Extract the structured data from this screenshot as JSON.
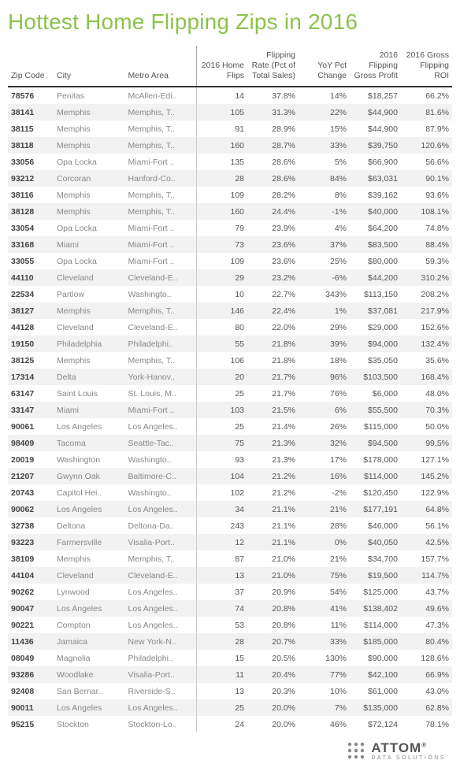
{
  "title": "Hottest Home Flipping Zips in 2016",
  "columns": [
    {
      "key": "zip",
      "label": "Zip Code",
      "class": "hdr-zip"
    },
    {
      "key": "city",
      "label": "City",
      "class": "hdr-city"
    },
    {
      "key": "metro",
      "label": "Metro Area",
      "class": "hdr-metro"
    },
    {
      "key": "flips",
      "label": "2016 Home Flips",
      "class": "hdr-num"
    },
    {
      "key": "rate",
      "label": "Flipping Rate (Pct of Total Sales)",
      "class": "hdr-num"
    },
    {
      "key": "yoy",
      "label": "YoY Pct Change",
      "class": "hdr-num"
    },
    {
      "key": "profit",
      "label": "2016 Flipping Gross Profit",
      "class": "hdr-num"
    },
    {
      "key": "roi",
      "label": "2016 Gross Flipping ROI",
      "class": "hdr-num"
    }
  ],
  "rows": [
    {
      "zip": "78576",
      "city": "Penitas",
      "metro": "McAllen-Edi..",
      "flips": "14",
      "rate": "37.8%",
      "yoy": "14%",
      "profit": "$18,257",
      "roi": "66.2%"
    },
    {
      "zip": "38141",
      "city": "Memphis",
      "metro": "Memphis, T..",
      "flips": "105",
      "rate": "31.3%",
      "yoy": "22%",
      "profit": "$44,900",
      "roi": "81.6%"
    },
    {
      "zip": "38115",
      "city": "Memphis",
      "metro": "Memphis, T..",
      "flips": "91",
      "rate": "28.9%",
      "yoy": "15%",
      "profit": "$44,900",
      "roi": "87.9%"
    },
    {
      "zip": "38118",
      "city": "Memphis",
      "metro": "Memphis, T..",
      "flips": "160",
      "rate": "28.7%",
      "yoy": "33%",
      "profit": "$39,750",
      "roi": "120.6%"
    },
    {
      "zip": "33056",
      "city": "Opa Locka",
      "metro": "Miami-Fort ..",
      "flips": "135",
      "rate": "28.6%",
      "yoy": "5%",
      "profit": "$66,900",
      "roi": "56.6%"
    },
    {
      "zip": "93212",
      "city": "Corcoran",
      "metro": "Hanford-Co..",
      "flips": "28",
      "rate": "28.6%",
      "yoy": "84%",
      "profit": "$63,031",
      "roi": "90.1%"
    },
    {
      "zip": "38116",
      "city": "Memphis",
      "metro": "Memphis, T..",
      "flips": "109",
      "rate": "28.2%",
      "yoy": "8%",
      "profit": "$39,162",
      "roi": "93.6%"
    },
    {
      "zip": "38128",
      "city": "Memphis",
      "metro": "Memphis, T..",
      "flips": "160",
      "rate": "24.4%",
      "yoy": "-1%",
      "profit": "$40,000",
      "roi": "108.1%"
    },
    {
      "zip": "33054",
      "city": "Opa Locka",
      "metro": "Miami-Fort ..",
      "flips": "79",
      "rate": "23.9%",
      "yoy": "4%",
      "profit": "$64,200",
      "roi": "74.8%"
    },
    {
      "zip": "33168",
      "city": "Miami",
      "metro": "Miami-Fort ..",
      "flips": "73",
      "rate": "23.6%",
      "yoy": "37%",
      "profit": "$83,500",
      "roi": "88.4%"
    },
    {
      "zip": "33055",
      "city": "Opa Locka",
      "metro": "Miami-Fort ..",
      "flips": "109",
      "rate": "23.6%",
      "yoy": "25%",
      "profit": "$80,000",
      "roi": "59.3%"
    },
    {
      "zip": "44110",
      "city": "Cleveland",
      "metro": "Cleveland-E..",
      "flips": "29",
      "rate": "23.2%",
      "yoy": "-6%",
      "profit": "$44,200",
      "roi": "310.2%"
    },
    {
      "zip": "22534",
      "city": "Partlow",
      "metro": "Washingto..",
      "flips": "10",
      "rate": "22.7%",
      "yoy": "343%",
      "profit": "$113,150",
      "roi": "208.2%"
    },
    {
      "zip": "38127",
      "city": "Memphis",
      "metro": "Memphis, T..",
      "flips": "146",
      "rate": "22.4%",
      "yoy": "1%",
      "profit": "$37,081",
      "roi": "217.9%"
    },
    {
      "zip": "44128",
      "city": "Cleveland",
      "metro": "Cleveland-E..",
      "flips": "80",
      "rate": "22.0%",
      "yoy": "29%",
      "profit": "$29,000",
      "roi": "152.6%"
    },
    {
      "zip": "19150",
      "city": "Philadelphia",
      "metro": "Philadelphi..",
      "flips": "55",
      "rate": "21.8%",
      "yoy": "39%",
      "profit": "$94,000",
      "roi": "132.4%"
    },
    {
      "zip": "38125",
      "city": "Memphis",
      "metro": "Memphis, T..",
      "flips": "106",
      "rate": "21.8%",
      "yoy": "18%",
      "profit": "$35,050",
      "roi": "35.6%"
    },
    {
      "zip": "17314",
      "city": "Delta",
      "metro": "York-Hanov..",
      "flips": "20",
      "rate": "21.7%",
      "yoy": "96%",
      "profit": "$103,500",
      "roi": "168.4%"
    },
    {
      "zip": "63147",
      "city": "Saint Louis",
      "metro": "St. Louis, M..",
      "flips": "25",
      "rate": "21.7%",
      "yoy": "76%",
      "profit": "$6,000",
      "roi": "48.0%"
    },
    {
      "zip": "33147",
      "city": "Miami",
      "metro": "Miami-Fort ..",
      "flips": "103",
      "rate": "21.5%",
      "yoy": "6%",
      "profit": "$55,500",
      "roi": "70.3%"
    },
    {
      "zip": "90061",
      "city": "Los Angeles",
      "metro": "Los Angeles..",
      "flips": "25",
      "rate": "21.4%",
      "yoy": "26%",
      "profit": "$115,000",
      "roi": "50.0%"
    },
    {
      "zip": "98409",
      "city": "Tacoma",
      "metro": "Seattle-Tac..",
      "flips": "75",
      "rate": "21.3%",
      "yoy": "32%",
      "profit": "$94,500",
      "roi": "99.5%"
    },
    {
      "zip": "20019",
      "city": "Washington",
      "metro": "Washingto..",
      "flips": "93",
      "rate": "21.3%",
      "yoy": "17%",
      "profit": "$178,000",
      "roi": "127.1%"
    },
    {
      "zip": "21207",
      "city": "Gwynn Oak",
      "metro": "Baltimore-C..",
      "flips": "104",
      "rate": "21.2%",
      "yoy": "16%",
      "profit": "$114,000",
      "roi": "145.2%"
    },
    {
      "zip": "20743",
      "city": "Capitol Hei..",
      "metro": "Washingto..",
      "flips": "102",
      "rate": "21.2%",
      "yoy": "-2%",
      "profit": "$120,450",
      "roi": "122.9%"
    },
    {
      "zip": "90062",
      "city": "Los Angeles",
      "metro": "Los Angeles..",
      "flips": "34",
      "rate": "21.1%",
      "yoy": "21%",
      "profit": "$177,191",
      "roi": "64.8%"
    },
    {
      "zip": "32738",
      "city": "Deltona",
      "metro": "Deltona-Da..",
      "flips": "243",
      "rate": "21.1%",
      "yoy": "28%",
      "profit": "$46,000",
      "roi": "56.1%"
    },
    {
      "zip": "93223",
      "city": "Farmersville",
      "metro": "Visalia-Port..",
      "flips": "12",
      "rate": "21.1%",
      "yoy": "0%",
      "profit": "$40,050",
      "roi": "42.5%"
    },
    {
      "zip": "38109",
      "city": "Memphis",
      "metro": "Memphis, T..",
      "flips": "87",
      "rate": "21.0%",
      "yoy": "21%",
      "profit": "$34,700",
      "roi": "157.7%"
    },
    {
      "zip": "44104",
      "city": "Cleveland",
      "metro": "Cleveland-E..",
      "flips": "13",
      "rate": "21.0%",
      "yoy": "75%",
      "profit": "$19,500",
      "roi": "114.7%"
    },
    {
      "zip": "90262",
      "city": "Lynwood",
      "metro": "Los Angeles..",
      "flips": "37",
      "rate": "20.9%",
      "yoy": "54%",
      "profit": "$125,000",
      "roi": "43.7%"
    },
    {
      "zip": "90047",
      "city": "Los Angeles",
      "metro": "Los Angeles..",
      "flips": "74",
      "rate": "20.8%",
      "yoy": "41%",
      "profit": "$138,402",
      "roi": "49.6%"
    },
    {
      "zip": "90221",
      "city": "Compton",
      "metro": "Los Angeles..",
      "flips": "53",
      "rate": "20.8%",
      "yoy": "11%",
      "profit": "$114,000",
      "roi": "47.3%"
    },
    {
      "zip": "11436",
      "city": "Jamaica",
      "metro": "New York-N..",
      "flips": "28",
      "rate": "20.7%",
      "yoy": "33%",
      "profit": "$185,000",
      "roi": "80.4%"
    },
    {
      "zip": "08049",
      "city": "Magnolia",
      "metro": "Philadelphi..",
      "flips": "15",
      "rate": "20.5%",
      "yoy": "130%",
      "profit": "$90,000",
      "roi": "128.6%"
    },
    {
      "zip": "93286",
      "city": "Woodlake",
      "metro": "Visalia-Port..",
      "flips": "11",
      "rate": "20.4%",
      "yoy": "77%",
      "profit": "$42,100",
      "roi": "66.9%"
    },
    {
      "zip": "92408",
      "city": "San Bernar..",
      "metro": "Riverside-S..",
      "flips": "13",
      "rate": "20.3%",
      "yoy": "10%",
      "profit": "$61,000",
      "roi": "43.0%"
    },
    {
      "zip": "90011",
      "city": "Los Angeles",
      "metro": "Los Angeles..",
      "flips": "25",
      "rate": "20.0%",
      "yoy": "7%",
      "profit": "$135,000",
      "roi": "62.8%"
    },
    {
      "zip": "95215",
      "city": "Stockton",
      "metro": "Stockton-Lo..",
      "flips": "24",
      "rate": "20.0%",
      "yoy": "46%",
      "profit": "$72,124",
      "roi": "78.1%"
    }
  ],
  "logo": {
    "name": "ATTOM",
    "reg": "®",
    "sub": "DATA SOLUTIONS"
  }
}
